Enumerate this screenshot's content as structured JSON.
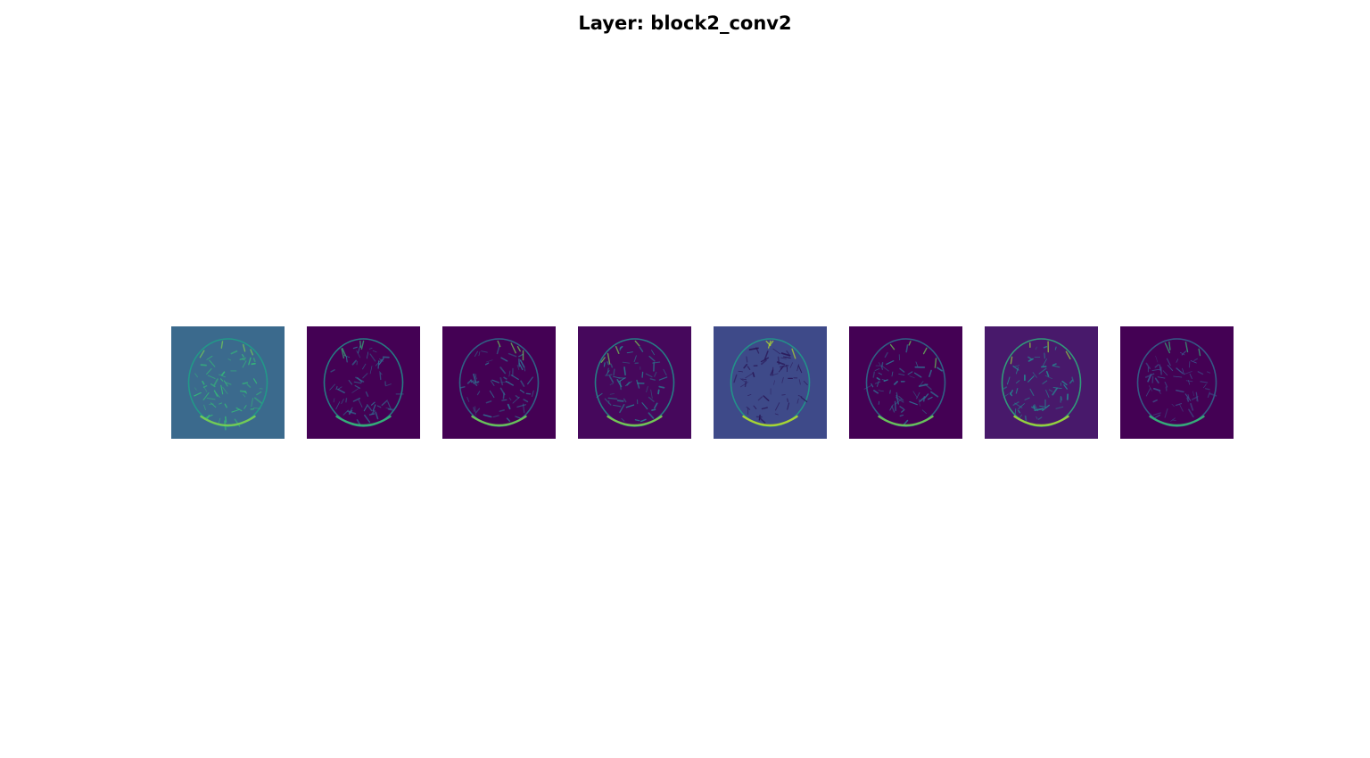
{
  "figure": {
    "title": "Layer: block2_conv2"
  },
  "feature_maps": [
    {
      "background": "#3b6a8d",
      "skull_color": "#35b779",
      "highlight_color": "#7ad151",
      "rim_color": "#1fa187"
    },
    {
      "background": "#440154",
      "skull_color": "#31688e",
      "highlight_color": "#35b779",
      "rim_color": "#21918c"
    },
    {
      "background": "#440154",
      "skull_color": "#31688e",
      "highlight_color": "#6ece58",
      "rim_color": "#2c728e"
    },
    {
      "background": "#46085c",
      "skull_color": "#2a788e",
      "highlight_color": "#7ad151",
      "rim_color": "#21918c"
    },
    {
      "background": "#3e4a89",
      "skull_color": "#2a1858",
      "highlight_color": "#b5de2b",
      "rim_color": "#1f9e89"
    },
    {
      "background": "#440154",
      "skull_color": "#31688e",
      "highlight_color": "#6ece58",
      "rim_color": "#2c728e"
    },
    {
      "background": "#48196b",
      "skull_color": "#26828e",
      "highlight_color": "#a0da39",
      "rim_color": "#2db27d"
    },
    {
      "background": "#440154",
      "skull_color": "#3b528b",
      "highlight_color": "#35b779",
      "rim_color": "#31688e"
    }
  ]
}
